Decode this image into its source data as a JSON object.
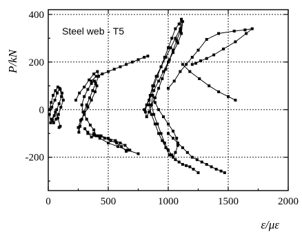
{
  "chart_data": {
    "type": "scatter",
    "title": "",
    "annotation": "Steel web - T5",
    "xlabel": "ε/με",
    "ylabel": "P/kN",
    "xlim": [
      0,
      2000
    ],
    "ylim": [
      -340,
      420
    ],
    "xticks": [
      0,
      500,
      1000,
      1500,
      2000
    ],
    "yticks": [
      -200,
      0,
      200,
      400
    ],
    "xtick_labels": [
      "0",
      "500",
      "1000",
      "1500",
      "2000"
    ],
    "ytick_labels": [
      "-200",
      "0",
      "200",
      "400"
    ],
    "grid": true,
    "legend": "none",
    "marker": "square",
    "series": [
      {
        "x": [
          10,
          25,
          40,
          60,
          80,
          100,
          110,
          90,
          70,
          50,
          35,
          20,
          10,
          30,
          55,
          75,
          95,
          115,
          125,
          105,
          85,
          65,
          45,
          30,
          60,
          80,
          100,
          90
        ],
        "y": [
          0,
          30,
          60,
          80,
          95,
          85,
          55,
          25,
          0,
          -25,
          -45,
          -55,
          -20,
          10,
          40,
          70,
          90,
          70,
          40,
          10,
          -20,
          -40,
          -55,
          -40,
          -10,
          -35,
          -70,
          -75
        ]
      },
      {
        "x": [
          230,
          260,
          300,
          340,
          380,
          410,
          420,
          395,
          370,
          345,
          320,
          300,
          280,
          265,
          255,
          250,
          270,
          300,
          330,
          360,
          390,
          405,
          385,
          360,
          330,
          300,
          280,
          290,
          320,
          350,
          380,
          400,
          360,
          330,
          305,
          330,
          380,
          440,
          500,
          560,
          600,
          640,
          680,
          650,
          610,
          570,
          520,
          470,
          420,
          380,
          430,
          500,
          580,
          660,
          750
        ],
        "y": [
          40,
          70,
          95,
          125,
          150,
          160,
          140,
          110,
          80,
          50,
          20,
          -10,
          -40,
          -70,
          -95,
          -75,
          -45,
          -20,
          10,
          40,
          75,
          100,
          120,
          110,
          85,
          55,
          20,
          -10,
          -40,
          -65,
          -85,
          -110,
          -115,
          -95,
          -80,
          -100,
          -105,
          -110,
          -120,
          -130,
          -140,
          -150,
          -170,
          -175,
          -155,
          -140,
          -130,
          -120,
          -110,
          -100,
          -120,
          -140,
          -155,
          -170,
          -185
        ]
      },
      {
        "x": [
          360,
          400,
          450,
          500,
          550,
          600,
          650,
          700,
          750,
          800,
          830
        ],
        "y": [
          120,
          140,
          150,
          160,
          170,
          180,
          190,
          200,
          210,
          220,
          225
        ]
      },
      {
        "x": [
          800,
          840,
          880,
          920,
          960,
          1000,
          1040,
          1080,
          1110,
          1120,
          1100,
          1070,
          1040,
          1010,
          980,
          950,
          920,
          890,
          860,
          840,
          820,
          810,
          820,
          850,
          880,
          910,
          940,
          970,
          1000,
          1030,
          1060,
          1090,
          1110,
          1100,
          1060,
          1020,
          980,
          940,
          900,
          870,
          850,
          840,
          860,
          890,
          920,
          950,
          980,
          1010,
          1040,
          1060,
          1080,
          1070,
          1040,
          1000,
          960,
          920,
          890,
          870,
          860,
          880,
          910,
          940,
          970,
          1000,
          1030,
          1060,
          1090,
          1120,
          1150,
          1180,
          1210,
          1250
        ],
        "y": [
          0,
          40,
          80,
          120,
          160,
          200,
          240,
          280,
          320,
          370,
          330,
          290,
          250,
          210,
          170,
          130,
          90,
          50,
          20,
          -10,
          -30,
          -10,
          20,
          60,
          100,
          140,
          180,
          220,
          260,
          300,
          340,
          360,
          380,
          340,
          300,
          260,
          220,
          180,
          140,
          100,
          60,
          20,
          -20,
          -60,
          -100,
          -130,
          -160,
          -190,
          -200,
          -180,
          -150,
          -120,
          -90,
          -60,
          -30,
          0,
          30,
          60,
          20,
          -20,
          -60,
          -100,
          -140,
          -170,
          -190,
          -210,
          -220,
          -230,
          -235,
          -240,
          -250,
          -265
        ]
      },
      {
        "x": [
          1000,
          1040,
          1080,
          1120,
          1160,
          1200,
          1240,
          1280,
          1320,
          1360,
          1400,
          1440,
          1470
        ],
        "y": [
          -100,
          -120,
          -140,
          -160,
          -180,
          -200,
          -210,
          -220,
          -230,
          -240,
          -250,
          -258,
          -265
        ]
      },
      {
        "x": [
          1000,
          1050,
          1100,
          1150,
          1200,
          1250,
          1320,
          1420,
          1550,
          1640,
          1700,
          1650,
          1560,
          1460,
          1380,
          1320,
          1270,
          1230,
          1200
        ],
        "y": [
          90,
          120,
          160,
          190,
          220,
          250,
          295,
          320,
          330,
          335,
          340,
          320,
          285,
          255,
          230,
          215,
          205,
          195,
          190
        ]
      },
      {
        "x": [
          1120,
          1180,
          1260,
          1340,
          1420,
          1500,
          1560
        ],
        "y": [
          190,
          160,
          130,
          100,
          75,
          55,
          40
        ]
      }
    ]
  }
}
